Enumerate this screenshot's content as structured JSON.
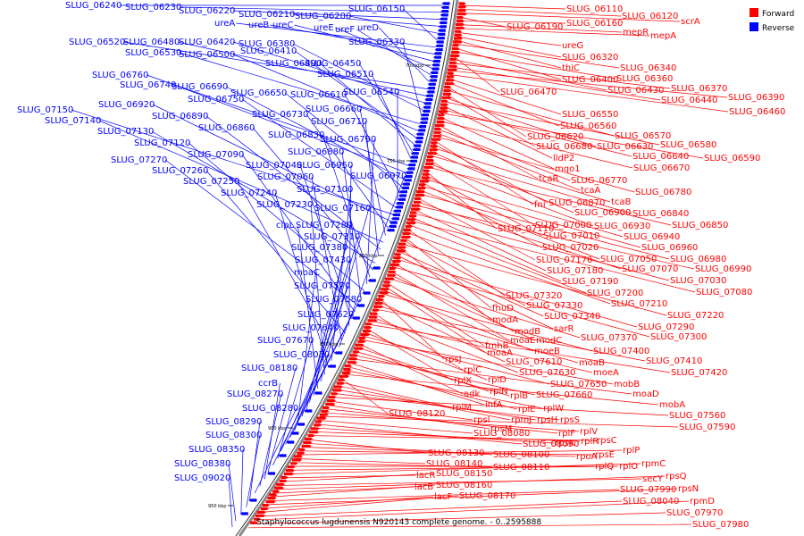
{
  "legend": {
    "forward": {
      "label": "Forward",
      "color": "#ff0000"
    },
    "reverse": {
      "label": "Reverse",
      "color": "#0000ff"
    }
  },
  "caption": "Staphylococcus lugdunensis N920143 complete genome. - 0..2595888",
  "ticks": [
    "700 kbp",
    "750 kbp",
    "800 kbp",
    "850 kbp",
    "900 kbp",
    "950 kbp"
  ],
  "reverse_labels": [
    "SLUG_06240",
    "SLUG_06230",
    "SLUG_06220",
    "SLUG_06210",
    "SLUG_06200",
    "SLUG_06150",
    "ureA",
    "ureB",
    "ureC",
    "ureE",
    "ureF",
    "ureD",
    "SLUG_06520",
    "SLUG_06480",
    "SLUG_06420",
    "SLUG_06380",
    "SLUG_06330",
    "SLUG_06530",
    "SLUG_06500",
    "SLUG_06410",
    "SLUG_06490",
    "SLUG_06450",
    "SLUG_06510",
    "SLUG_06760",
    "SLUG_06740",
    "SLUG_06690",
    "SLUG_06650",
    "SLUG_06610",
    "SLUG_06540",
    "SLUG_06750",
    "SLUG_07150",
    "SLUG_06920",
    "SLUG_06730",
    "SLUG_06660",
    "SLUG_07140",
    "SLUG_06890",
    "SLUG_06710",
    "SLUG_07130",
    "SLUG_06860",
    "SLUG_06830",
    "SLUG_06790",
    "SLUG_07120",
    "SLUG_06880",
    "SLUG_07270",
    "SLUG_07090",
    "SLUG_07040",
    "SLUG_06950",
    "SLUG_07260",
    "SLUG_07060",
    "SLUG_06970",
    "SLUG_07250",
    "SLUG_07100",
    "SLUG_07240",
    "SLUG_07230",
    "SLUG_07160",
    "clpL",
    "SLUG_07280",
    "SLUG_07310",
    "SLUG_07380",
    "SLUG_07430",
    "moaC",
    "SLUG_07570",
    "SLUG_07580",
    "SLUG_07620",
    "SLUG_07640",
    "SLUG_07670",
    "SLUG_08030",
    "SLUG_08180",
    "ccrB",
    "SLUG_08270",
    "SLUG_08280",
    "SLUG_08290",
    "SLUG_08300",
    "SLUG_08350",
    "SLUG_08380",
    "SLUG_09020"
  ],
  "forward_labels": [
    "SLUG_06110",
    "SLUG_06120",
    "scrA",
    "SLUG_06190",
    "SLUG_06160",
    "mepR",
    "mepA",
    "ureG",
    "SLUG_06320",
    "thiC",
    "SLUG_06340",
    "SLUG_06400",
    "SLUG_06360",
    "SLUG_06470",
    "SLUG_06430",
    "SLUG_06370",
    "SLUG_06440",
    "SLUG_06390",
    "SLUG_06460",
    "SLUG_06550",
    "SLUG_06560",
    "SLUG_06620",
    "SLUG_06570",
    "SLUG_06680",
    "SLUG_06630",
    "SLUG_06580",
    "lldP2",
    "SLUG_06640",
    "SLUG_06590",
    "mqo1",
    "SLUG_06670",
    "tcaR",
    "SLUG_06770",
    "tcaA",
    "SLUG_06780",
    "fni",
    "SLUG_06870",
    "tcaB",
    "SLUG_06900",
    "SLUG_06840",
    "SLUG_07000",
    "SLUG_06930",
    "SLUG_06850",
    "SLUG_07110",
    "SLUG_07010",
    "SLUG_06940",
    "SLUG_07020",
    "SLUG_06960",
    "SLUG_07050",
    "SLUG_06980",
    "SLUG_07170",
    "SLUG_07070",
    "SLUG_06990",
    "SLUG_07180",
    "SLUG_07030",
    "SLUG_07190",
    "SLUG_07080",
    "SLUG_07200",
    "SLUG_07320",
    "SLUG_07210",
    "fhuD",
    "SLUG_07330",
    "SLUG_07220",
    "modA",
    "SLUG_07340",
    "sarR",
    "SLUG_07290",
    "modB",
    "SLUG_07300",
    "moaE",
    "modC",
    "SLUG_07370",
    "fmhB",
    "moaA",
    "moeB",
    "SLUG_07400",
    "rpsJ",
    "SLUG_07610",
    "moaB",
    "SLUG_07410",
    "rplC",
    "SLUG_07630",
    "moeA",
    "SLUG_07420",
    "rplX",
    "rplD",
    "SLUG_07650",
    "mobB",
    "adk",
    "rplN",
    "rplB",
    "SLUG_07660",
    "moaD",
    "infA",
    "rplE",
    "rplW",
    "mobA",
    "SLUG_08120",
    "rplM",
    "rpmJ",
    "rpsH",
    "rpsS",
    "SLUG_07560",
    "rpsI",
    "rpsM",
    "rplF",
    "rplV",
    "SLUG_07590",
    "SLUG_08080",
    "SLUG_08090",
    "rpsK",
    "rplR",
    "rpsC",
    "SLUG_08130",
    "SLUG_08100",
    "rpoA",
    "rpsE",
    "rplP",
    "SLUG_08140",
    "SLUG_08110",
    "rplQ",
    "rplO",
    "rpmC",
    "lacR",
    "SLUG_08150",
    "secY",
    "rpsQ",
    "lacB",
    "SLUG_08160",
    "SLUG_07990",
    "rpsN",
    "lacF",
    "SLUG_08170",
    "SLUG_08040",
    "rpmD",
    "SLUG_07970",
    "SLUG_07980"
  ]
}
